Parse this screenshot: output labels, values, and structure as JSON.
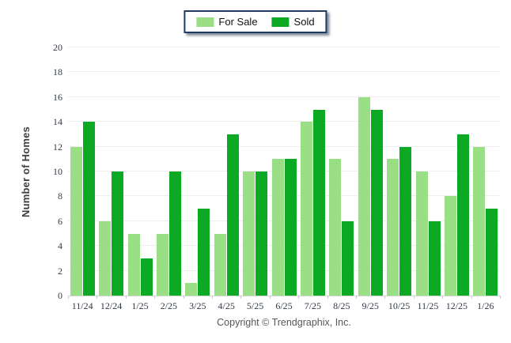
{
  "chart_data": {
    "type": "bar",
    "categories": [
      "11/24",
      "12/24",
      "1/25",
      "2/25",
      "3/25",
      "4/25",
      "5/25",
      "6/25",
      "7/25",
      "8/25",
      "9/25",
      "10/25",
      "11/25",
      "12/25",
      "1/26"
    ],
    "series": [
      {
        "name": "For Sale",
        "color": "#9ADE85",
        "values": [
          12,
          6,
          5,
          5,
          1,
          5,
          10,
          11,
          14,
          11,
          16,
          11,
          10,
          8,
          12
        ]
      },
      {
        "name": "Sold",
        "color": "#0CAA24",
        "values": [
          14,
          10,
          3,
          10,
          7,
          13,
          10,
          11,
          15,
          6,
          15,
          12,
          6,
          13,
          7
        ]
      }
    ],
    "xlabel": "",
    "ylabel": "Number of Homes",
    "ylim": [
      0,
      20
    ],
    "ytick_step": 2,
    "grid": true,
    "legend_position": "top-center"
  },
  "footer": {
    "copyright": "Copyright © Trendgraphix, Inc."
  },
  "style": {
    "grid_color": "#eeeeee",
    "axis_color": "#d4d4d4",
    "tick_color": "#c9c9c9",
    "tick_label_color": "#333a45",
    "legend_border_color": "#1e3c5f"
  }
}
